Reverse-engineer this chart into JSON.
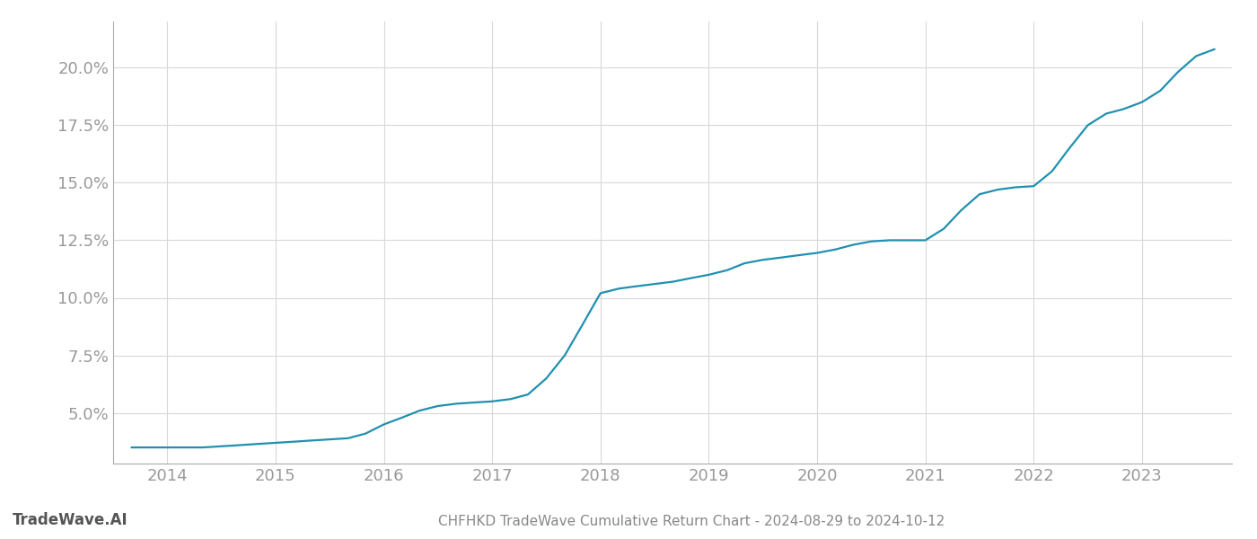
{
  "title": "CHFHKD TradeWave Cumulative Return Chart - 2024-08-29 to 2024-10-12",
  "watermark": "TradeWave.AI",
  "line_color": "#2090b0",
  "background_color": "#ffffff",
  "grid_color": "#d8d8d8",
  "x_values": [
    2013.67,
    2014.0,
    2014.17,
    2014.33,
    2014.5,
    2014.67,
    2014.83,
    2015.0,
    2015.17,
    2015.33,
    2015.5,
    2015.67,
    2015.83,
    2016.0,
    2016.17,
    2016.33,
    2016.5,
    2016.67,
    2016.83,
    2017.0,
    2017.17,
    2017.33,
    2017.5,
    2017.67,
    2017.83,
    2018.0,
    2018.17,
    2018.33,
    2018.5,
    2018.67,
    2018.83,
    2019.0,
    2019.17,
    2019.33,
    2019.5,
    2019.67,
    2019.83,
    2020.0,
    2020.17,
    2020.33,
    2020.5,
    2020.67,
    2020.83,
    2021.0,
    2021.17,
    2021.33,
    2021.5,
    2021.67,
    2021.83,
    2022.0,
    2022.17,
    2022.33,
    2022.5,
    2022.67,
    2022.83,
    2023.0,
    2023.17,
    2023.33,
    2023.5,
    2023.67
  ],
  "y_values": [
    3.5,
    3.5,
    3.5,
    3.5,
    3.55,
    3.6,
    3.65,
    3.7,
    3.75,
    3.8,
    3.85,
    3.9,
    4.1,
    4.5,
    4.8,
    5.1,
    5.3,
    5.4,
    5.45,
    5.5,
    5.6,
    5.8,
    6.5,
    7.5,
    8.8,
    10.2,
    10.4,
    10.5,
    10.6,
    10.7,
    10.85,
    11.0,
    11.2,
    11.5,
    11.65,
    11.75,
    11.85,
    11.95,
    12.1,
    12.3,
    12.45,
    12.5,
    12.5,
    12.5,
    13.0,
    13.8,
    14.5,
    14.7,
    14.8,
    14.85,
    15.5,
    16.5,
    17.5,
    18.0,
    18.2,
    18.5,
    19.0,
    19.8,
    20.5,
    20.8
  ],
  "xlim": [
    2013.5,
    2023.83
  ],
  "ylim": [
    2.8,
    22.0
  ],
  "yticks": [
    5.0,
    7.5,
    10.0,
    12.5,
    15.0,
    17.5,
    20.0
  ],
  "xticks": [
    2014,
    2015,
    2016,
    2017,
    2018,
    2019,
    2020,
    2021,
    2022,
    2023
  ],
  "tick_label_color": "#999999",
  "title_color": "#888888",
  "watermark_color": "#555555",
  "title_fontsize": 11,
  "tick_fontsize": 13,
  "watermark_fontsize": 12,
  "line_width": 1.6,
  "left_spine_color": "#aaaaaa"
}
